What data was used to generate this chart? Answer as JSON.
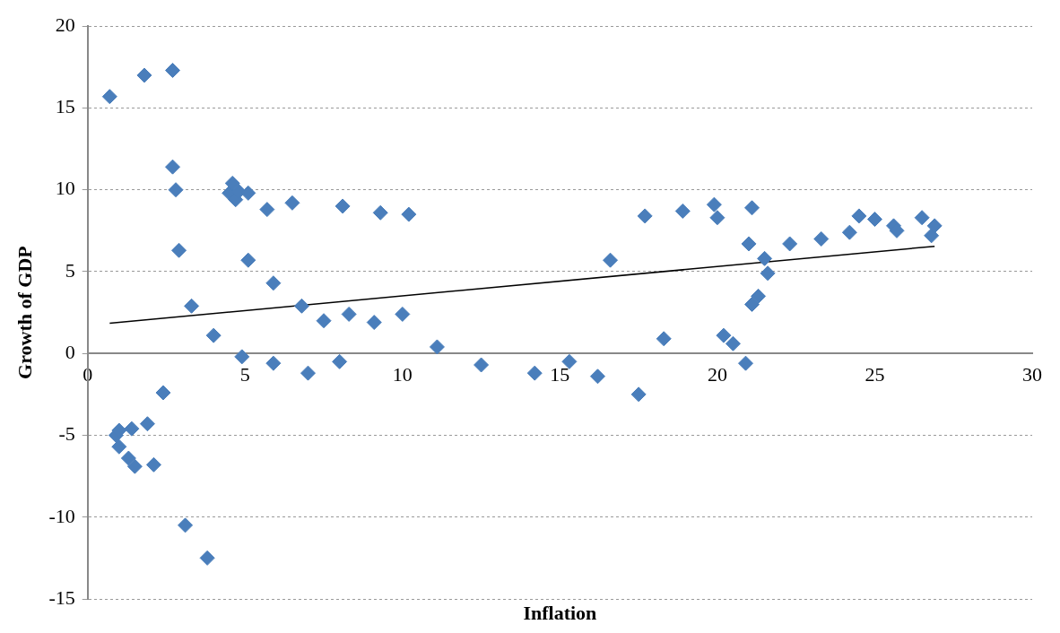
{
  "chart_data": {
    "type": "scatter",
    "xlabel": "Inflation",
    "ylabel": "Growth of GDP",
    "xlim": [
      0,
      30
    ],
    "xticks": [
      0,
      5,
      10,
      15,
      20,
      25,
      30
    ],
    "ylim": [
      -15,
      20
    ],
    "yticks": [
      -15,
      -10,
      -5,
      0,
      5,
      10,
      15,
      20
    ],
    "grid": "y",
    "legend": false,
    "marker": "diamond",
    "series": [
      {
        "color": "#4a7ebb",
        "x": [
          0.7,
          1.8,
          2.7,
          2.7,
          2.8,
          2.9,
          3.3,
          4.0,
          4.9,
          4.5,
          4.6,
          4.7,
          4.8,
          5.1,
          5.7,
          6.5,
          8.1,
          9.3,
          10.2,
          5.1,
          5.9,
          6.8,
          7.5,
          8.3,
          9.1,
          10.0,
          11.1,
          5.9,
          7.0,
          8.0,
          12.5,
          14.2,
          15.3,
          16.2,
          17.5,
          16.6,
          17.7,
          18.9,
          19.9,
          20.0,
          21.1,
          21.0,
          21.5,
          21.6,
          21.3,
          21.1,
          18.3,
          20.2,
          20.5,
          20.9,
          22.3,
          23.3,
          24.2,
          24.5,
          25.0,
          25.6,
          25.7,
          26.5,
          26.8,
          26.9,
          0.9,
          1.0,
          1.4,
          1.9,
          1.0,
          1.3,
          1.5,
          2.1,
          2.4,
          3.1,
          3.8
        ],
        "values": [
          15.7,
          17.0,
          17.3,
          11.4,
          10.0,
          6.3,
          2.9,
          1.1,
          -0.2,
          9.8,
          10.4,
          9.4,
          9.9,
          9.8,
          8.8,
          9.2,
          9.0,
          8.6,
          8.5,
          5.7,
          4.3,
          2.9,
          2.0,
          2.4,
          1.9,
          2.4,
          0.4,
          -0.6,
          -1.2,
          -0.5,
          -0.7,
          -1.2,
          -0.5,
          -1.4,
          -2.5,
          5.7,
          8.4,
          8.7,
          9.1,
          8.3,
          8.9,
          6.7,
          5.8,
          4.9,
          3.5,
          3.0,
          0.9,
          1.1,
          0.6,
          -0.6,
          6.7,
          7.0,
          7.4,
          8.4,
          8.2,
          7.8,
          7.5,
          8.3,
          7.2,
          7.8,
          -5.0,
          -4.7,
          -4.6,
          -4.3,
          -5.7,
          -6.4,
          -6.9,
          -6.8,
          -2.4,
          -10.5,
          -12.5
        ]
      },
      {
        "type": "line",
        "color": "#000000",
        "marker": "none",
        "x": [
          0.7,
          26.9
        ],
        "values": [
          1.85,
          6.55
        ]
      }
    ]
  }
}
